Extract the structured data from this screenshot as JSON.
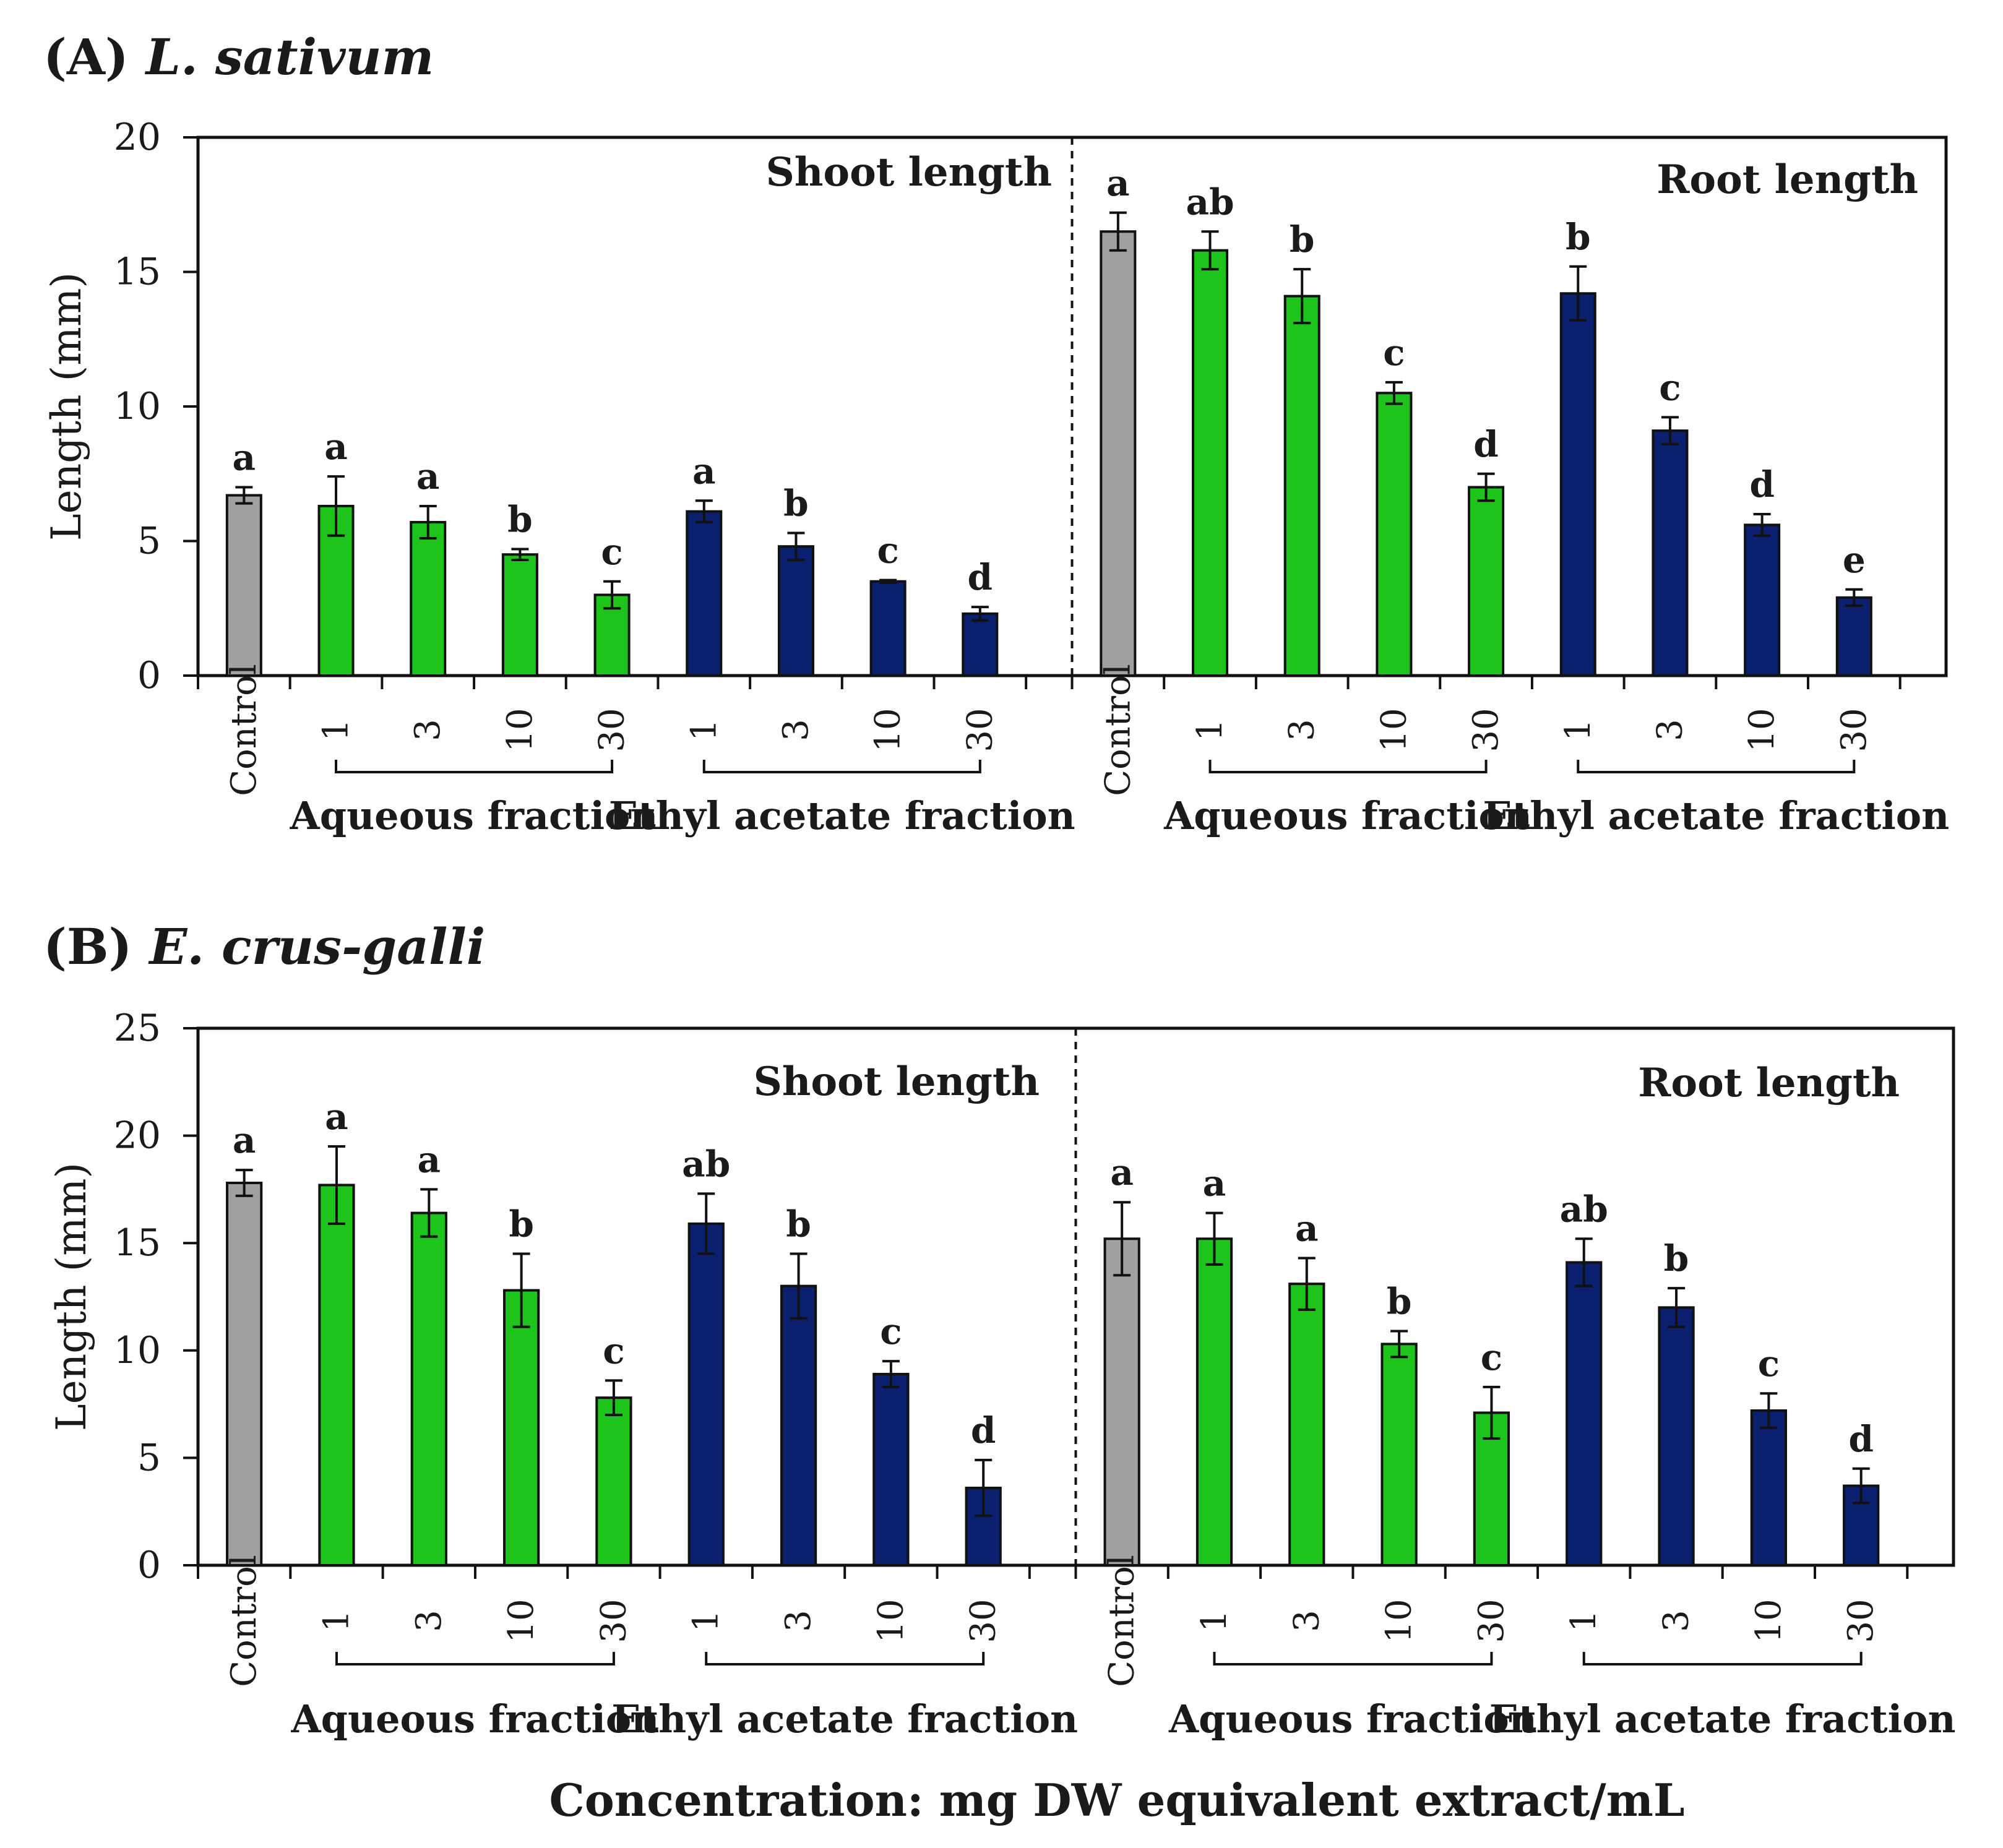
{
  "chart_data": [
    {
      "type": "bar",
      "panel_label": "(A)",
      "species": "L. sativum",
      "ylabel": "Length (mm)",
      "ylim": [
        0,
        20
      ],
      "yticks": [
        0,
        5,
        10,
        15,
        20
      ],
      "sections": [
        {
          "title": "Shoot length",
          "categories": [
            "Control",
            "1",
            "3",
            "10",
            "30",
            "1",
            "3",
            "10",
            "30"
          ],
          "groups": [
            "control",
            "aqueous",
            "aqueous",
            "aqueous",
            "aqueous",
            "ethyl",
            "ethyl",
            "ethyl",
            "ethyl"
          ],
          "values": [
            6.7,
            6.3,
            5.7,
            4.5,
            3.0,
            6.1,
            4.8,
            3.5,
            2.3
          ],
          "errors": [
            0.3,
            1.1,
            0.6,
            0.2,
            0.5,
            0.4,
            0.5,
            0.05,
            0.25
          ],
          "letters": [
            "a",
            "a",
            "a",
            "b",
            "c",
            "a",
            "b",
            "c",
            "d"
          ]
        },
        {
          "title": "Root length",
          "categories": [
            "Control",
            "1",
            "3",
            "10",
            "30",
            "1",
            "3",
            "10",
            "30"
          ],
          "groups": [
            "control",
            "aqueous",
            "aqueous",
            "aqueous",
            "aqueous",
            "ethyl",
            "ethyl",
            "ethyl",
            "ethyl"
          ],
          "values": [
            16.5,
            15.8,
            14.1,
            10.5,
            7.0,
            14.2,
            9.1,
            5.6,
            2.9
          ],
          "errors": [
            0.7,
            0.7,
            1.0,
            0.4,
            0.5,
            1.0,
            0.5,
            0.4,
            0.3
          ],
          "letters": [
            "a",
            "ab",
            "b",
            "c",
            "d",
            "b",
            "c",
            "d",
            "e"
          ]
        }
      ],
      "group_labels": {
        "aqueous": "Aqueous fraction",
        "ethyl": "Ethyl acetate fraction"
      },
      "colors": {
        "control": "#a0a0a0",
        "aqueous": "#1cc41c",
        "ethyl": "#0a1f6e"
      }
    },
    {
      "type": "bar",
      "panel_label": "(B)",
      "species": "E.  crus-galli",
      "ylabel": "Length (mm)",
      "ylim": [
        0,
        25
      ],
      "yticks": [
        0,
        5,
        10,
        15,
        20,
        25
      ],
      "sections": [
        {
          "title": "Shoot length",
          "categories": [
            "Control",
            "1",
            "3",
            "10",
            "30",
            "1",
            "3",
            "10",
            "30"
          ],
          "groups": [
            "control",
            "aqueous",
            "aqueous",
            "aqueous",
            "aqueous",
            "ethyl",
            "ethyl",
            "ethyl",
            "ethyl"
          ],
          "values": [
            17.8,
            17.7,
            16.4,
            12.8,
            7.8,
            15.9,
            13.0,
            8.9,
            3.6
          ],
          "errors": [
            0.6,
            1.8,
            1.1,
            1.7,
            0.8,
            1.4,
            1.5,
            0.6,
            1.3
          ],
          "letters": [
            "a",
            "a",
            "a",
            "b",
            "c",
            "ab",
            "b",
            "c",
            "d"
          ]
        },
        {
          "title": "Root length",
          "categories": [
            "Control",
            "1",
            "3",
            "10",
            "30",
            "1",
            "3",
            "10",
            "30"
          ],
          "groups": [
            "control",
            "aqueous",
            "aqueous",
            "aqueous",
            "aqueous",
            "ethyl",
            "ethyl",
            "ethyl",
            "ethyl"
          ],
          "values": [
            15.2,
            15.2,
            13.1,
            10.3,
            7.1,
            14.1,
            12.0,
            7.2,
            3.7
          ],
          "errors": [
            1.7,
            1.2,
            1.2,
            0.6,
            1.2,
            1.1,
            0.9,
            0.8,
            0.8
          ],
          "letters": [
            "a",
            "a",
            "a",
            "b",
            "c",
            "ab",
            "b",
            "c",
            "d"
          ]
        }
      ],
      "group_labels": {
        "aqueous": "Aqueous fraction",
        "ethyl": "Ethyl acetate fraction"
      },
      "colors": {
        "control": "#a0a0a0",
        "aqueous": "#1cc41c",
        "ethyl": "#0a1f6e"
      }
    }
  ],
  "xlabel": "Concentration: mg DW equivalent extract/mL"
}
